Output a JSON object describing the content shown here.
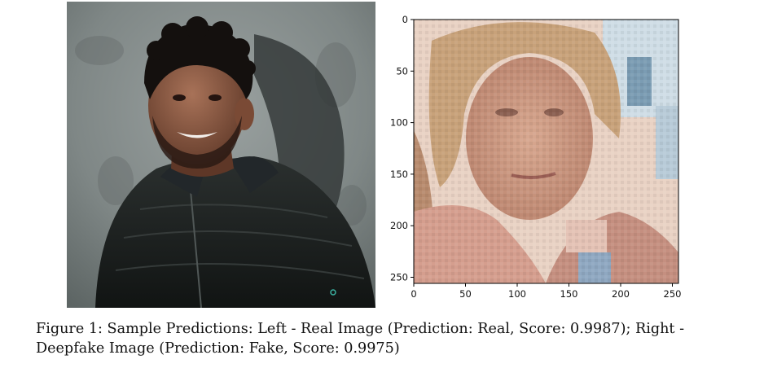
{
  "figure": {
    "caption": "Figure 1: Sample Predictions: Left - Real Image (Prediction: Real, Score: 0.9987); Right - Deepfake Image (Prediction: Fake, Score: 0.9975)"
  },
  "left_image": {
    "subject": "young man with dark curly hair and beard, black quilted jacket, against grey concrete wall"
  },
  "right_plot": {
    "subject": "pixelated low-resolution face of a woman with blonde hair",
    "x_ticks": [
      "0",
      "50",
      "100",
      "150",
      "200",
      "250"
    ],
    "y_ticks": [
      "0",
      "50",
      "100",
      "150",
      "200",
      "250"
    ],
    "xlim": [
      0,
      256
    ],
    "ylim": [
      256,
      0
    ]
  }
}
